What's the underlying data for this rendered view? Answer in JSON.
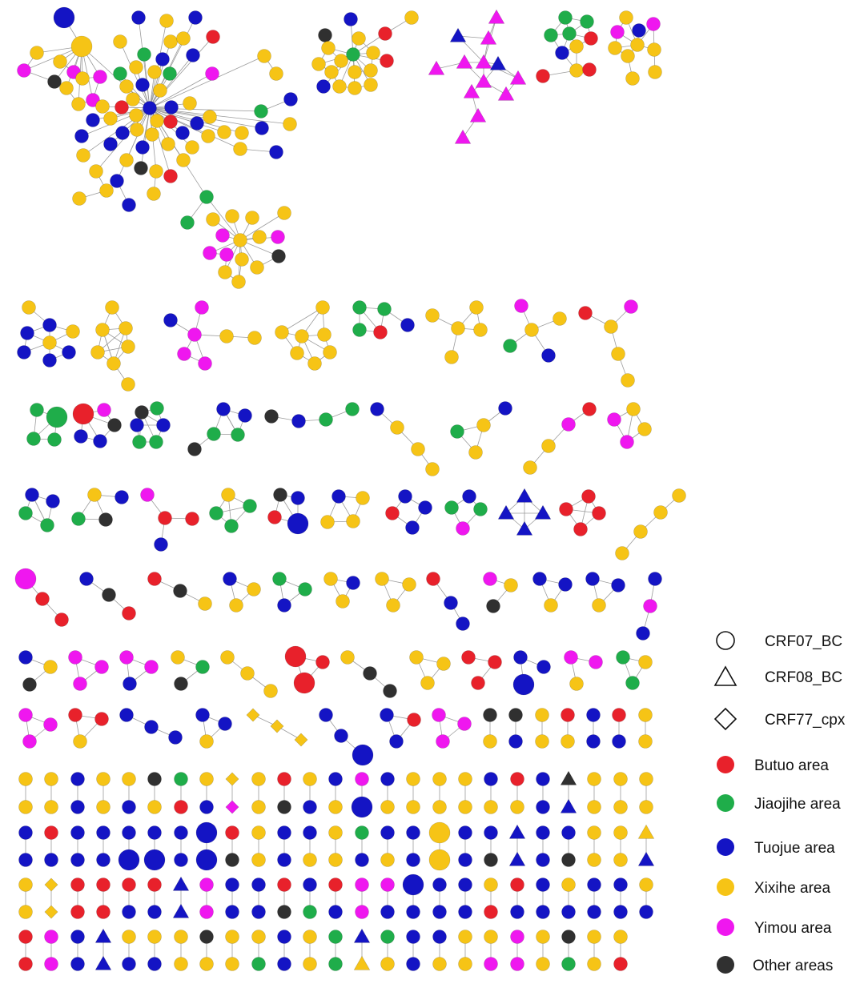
{
  "legend": {
    "subtypes": [
      {
        "label": "CRF07_BC",
        "shape": "circle-outline"
      },
      {
        "label": "CRF08_BC",
        "shape": "triangle-outline"
      },
      {
        "label": "CRF77_cpx",
        "shape": "diamond-outline"
      }
    ],
    "areas": [
      {
        "label": "Butuo area",
        "color": "#e8212b"
      },
      {
        "label": "Jiaojihe area",
        "color": "#1fad4a"
      },
      {
        "label": "Tuojue area",
        "color": "#1414c4"
      },
      {
        "label": "Xixihe area",
        "color": "#f6c416"
      },
      {
        "label": "Yimou area",
        "color": "#ef17ef"
      },
      {
        "label": "Other areas",
        "color": "#303030"
      }
    ]
  },
  "style": {
    "link_color": "#9c9c9c"
  }
}
